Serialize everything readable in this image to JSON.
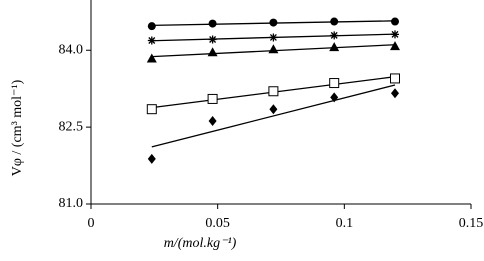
{
  "chart_data": {
    "type": "scatter",
    "x_label": "m/(mol.kg⁻¹)",
    "y_label": "Vφ / (cm³ mol⁻¹)",
    "x": [
      0.024,
      0.048,
      0.072,
      0.096,
      0.12
    ],
    "xlim": [
      0,
      0.15
    ],
    "xticks": [
      0,
      0.05,
      0.1,
      0.15
    ],
    "ylim": [
      81,
      85
    ],
    "yticks": [
      {
        "value": 81,
        "label": "81.0"
      },
      82.5,
      {
        "value": 84,
        "label": "84.0"
      }
    ],
    "trendline": true,
    "series": [
      {
        "marker": "circle",
        "color": "#000000",
        "values": [
          84.47,
          84.52,
          84.54,
          84.56,
          84.56
        ]
      },
      {
        "marker": "star",
        "color": "#000000",
        "values": [
          84.19,
          84.21,
          84.25,
          84.29,
          84.31
        ]
      },
      {
        "marker": "triangle",
        "color": "#000000",
        "values": [
          83.84,
          83.96,
          84.02,
          84.06,
          84.08
        ]
      },
      {
        "marker": "square",
        "color": "#000000",
        "values": [
          82.85,
          83.05,
          83.2,
          83.36,
          83.45
        ]
      },
      {
        "marker": "diamond",
        "color": "#000000",
        "values": [
          81.88,
          82.62,
          82.85,
          83.08,
          83.16
        ]
      }
    ]
  }
}
